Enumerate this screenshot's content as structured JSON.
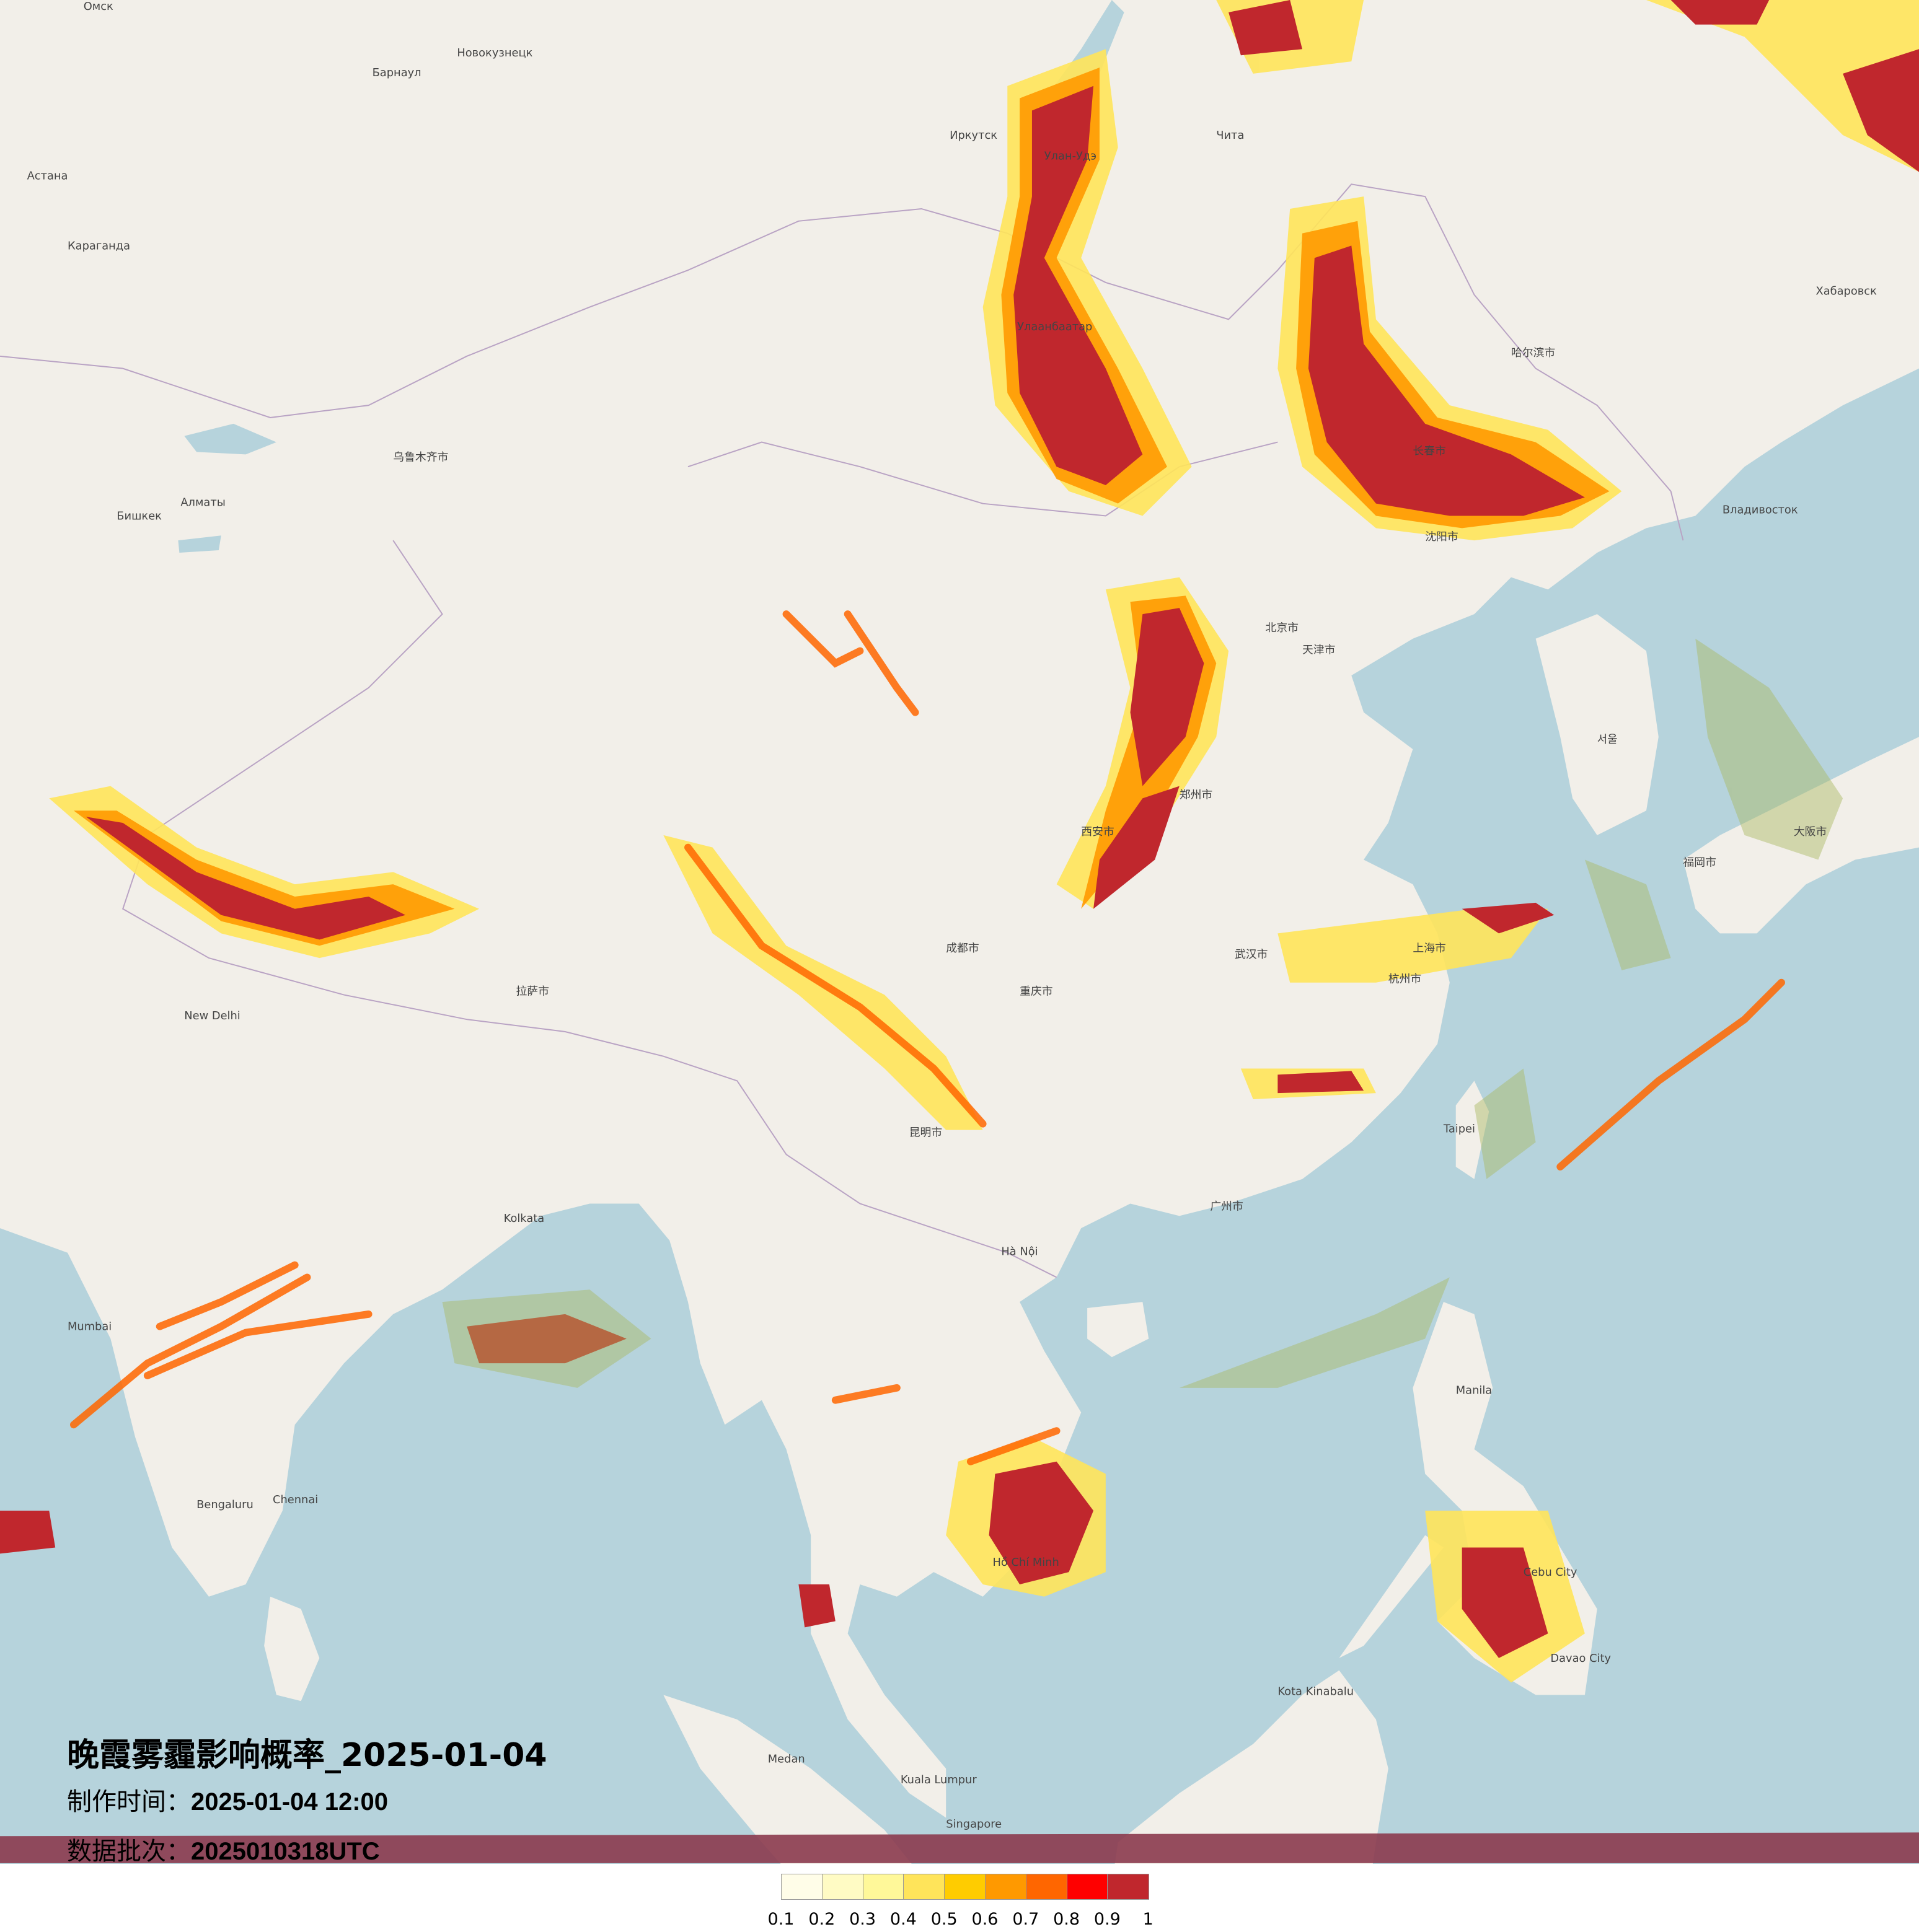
{
  "map": {
    "land_color": "#f2efe9",
    "sea_color": "#b6d3dc",
    "places": [
      {
        "name": "Омск",
        "lon_lat_hint": "Omsk"
      },
      {
        "name": "Новокузнецк"
      },
      {
        "name": "Барнаул"
      },
      {
        "name": "Астана"
      },
      {
        "name": "Караганда"
      },
      {
        "name": "Иркутск"
      },
      {
        "name": "Улан-Удэ"
      },
      {
        "name": "Улаанбаатар"
      },
      {
        "name": "Чита"
      },
      {
        "name": "Хабаровск"
      },
      {
        "name": "Владивосток"
      },
      {
        "name": "Алматы"
      },
      {
        "name": "Бишкек"
      },
      {
        "name": "乌鲁木齐市"
      },
      {
        "name": "北京市"
      },
      {
        "name": "天津市"
      },
      {
        "name": "沈阳市"
      },
      {
        "name": "长春市"
      },
      {
        "name": "哈尔滨市"
      },
      {
        "name": "郑州市"
      },
      {
        "name": "西安市"
      },
      {
        "name": "成都市"
      },
      {
        "name": "重庆市"
      },
      {
        "name": "武汉市"
      },
      {
        "name": "上海市"
      },
      {
        "name": "杭州市"
      },
      {
        "name": "广州市"
      },
      {
        "name": "昆明市"
      },
      {
        "name": "拉萨市"
      },
      {
        "name": "New Delhi"
      },
      {
        "name": "Kolkata"
      },
      {
        "name": "Mumbai"
      },
      {
        "name": "Bengaluru"
      },
      {
        "name": "Chennai"
      },
      {
        "name": "Hà Nội"
      },
      {
        "name": "Hồ Chí Minh"
      },
      {
        "name": "Manila"
      },
      {
        "name": "Cebu City"
      },
      {
        "name": "Davao City"
      },
      {
        "name": "Kuala Lumpur"
      },
      {
        "name": "Singapore"
      },
      {
        "name": "Medan"
      },
      {
        "name": "Kota Kinabalu"
      },
      {
        "name": "Taipei"
      },
      {
        "name": "서울"
      },
      {
        "name": "福岡市"
      },
      {
        "name": "大阪市"
      }
    ]
  },
  "title": {
    "main": "晚霞雾霾影响概率_2025-01-04",
    "made_label": "制作时间：",
    "made_value": "2025-01-04 12:00",
    "batch_label": "数据批次：",
    "batch_value": "2025010318UTC"
  },
  "legend": {
    "colors": [
      "#fffde8",
      "#fffbc4",
      "#fff899",
      "#ffe45a",
      "#ffcc00",
      "#ff9900",
      "#ff6600",
      "#ff0000",
      "#c0272d"
    ],
    "labels": [
      "0.1",
      "0.2",
      "0.3",
      "0.4",
      "0.5",
      "0.6",
      "0.7",
      "0.8",
      "0.9",
      "1"
    ]
  }
}
